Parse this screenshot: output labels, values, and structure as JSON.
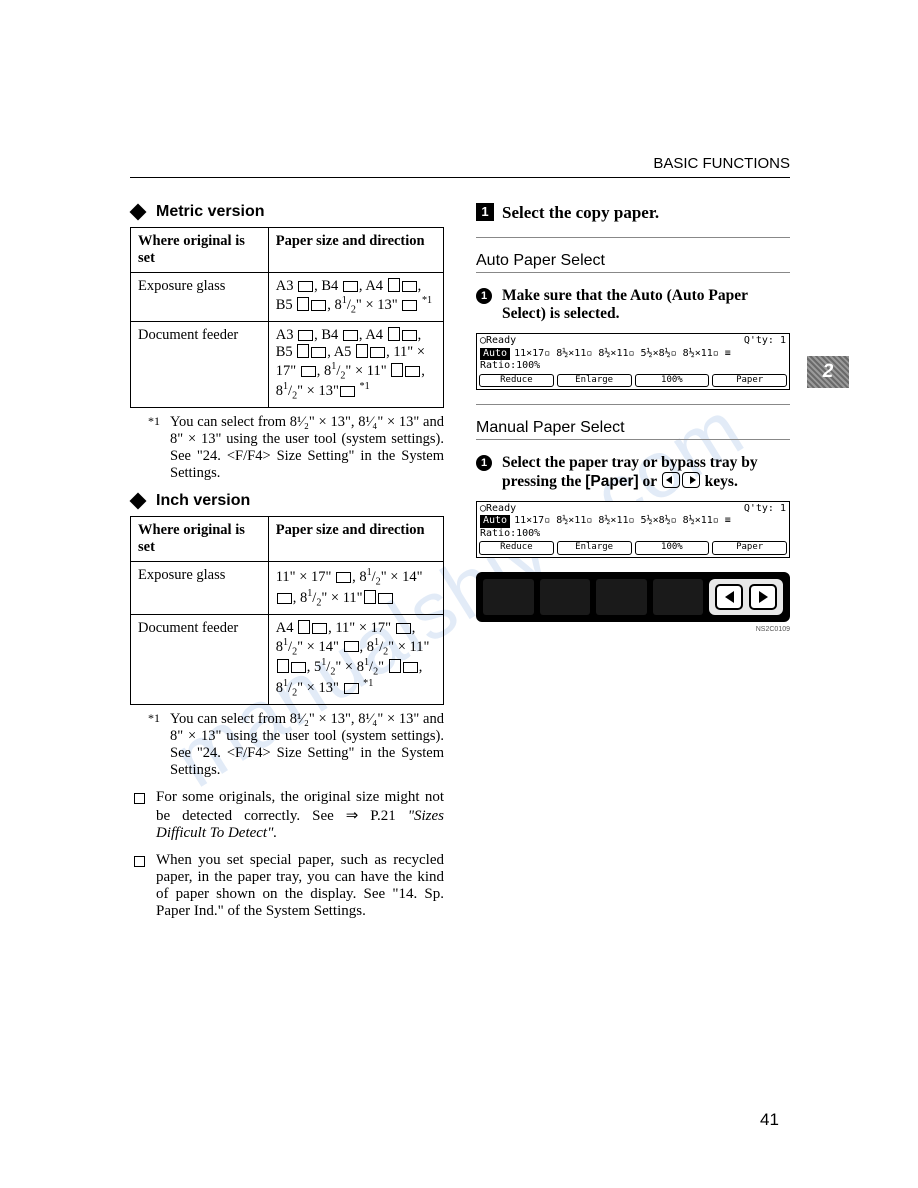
{
  "header": "BASIC FUNCTIONS",
  "tab": "2",
  "pagenum": "41",
  "watermark": "manualshive.com",
  "left": {
    "metric": {
      "title": "Metric version",
      "th1": "Where original is set",
      "th2": "Paper size and direction",
      "r1c1": "Exposure glass",
      "r1c2": "A3 ⬚, B4 ⬚, A4 ⬚⬚, B5 ⬚⬚, 8¹⁄₂\" × 13\" ⬚ *¹",
      "r2c1": "Document feeder",
      "r2c2": "A3 ⬚, B4 ⬚, A4 ⬚⬚, B5 ⬚⬚, A5 ⬚⬚, 11\" × 17\" ⬚, 8¹⁄₂\" × 11\" ⬚⬚, 8¹⁄₂\" × 13\"⬚ *¹"
    },
    "footnote1": "You can select from 8¹⁄₂\" × 13\", 8¹⁄₄\" × 13\" and 8\" × 13\" using the user tool (system settings). See \"24. <F/F4> Size Setting\" in the System Settings.",
    "inch": {
      "title": "Inch version",
      "th1": "Where original is set",
      "th2": "Paper size and direction",
      "r1c1": "Exposure glass",
      "r1c2": "11\" × 17\" ⬚, 8¹⁄₂\" × 14\" ⬚, 8¹⁄₂\" × 11\"⬚⬚",
      "r2c1": "Document feeder",
      "r2c2": "A4 ⬚⬚, 11\" × 17\" ⬚, 8¹⁄₂\" × 14\" ⬚, 8¹⁄₂\" × 11\" ⬚⬚, 5¹⁄₂\" × 8¹⁄₂\" ⬚⬚, 8¹⁄₂\" × 13\" ⬚ *¹"
    },
    "footnote2": "You can select from 8¹⁄₂\" × 13\", 8¹⁄₄\" × 13\" and 8\" × 13\" using the user tool (system settings). See \"24. <F/F4> Size Setting\" in the System Settings.",
    "bullet1a": "For some originals, the original size might not be detected correctly. See ⇒ P.21 ",
    "bullet1b": "\"Sizes Difficult To Detect\".",
    "bullet2": "When you set special paper, such as recycled paper, in the paper tray, you can have the kind of paper shown on the display. See \"14. Sp. Paper Ind.\" of the System Settings."
  },
  "right": {
    "step": "1",
    "stepTitle": "Select the copy paper.",
    "auto": {
      "label": "Auto Paper Select",
      "instr": "Make sure that the Auto (Auto Paper Select) is selected."
    },
    "manual": {
      "label": "Manual Paper Select",
      "instr_a": "Select the paper tray or bypass tray by pressing the ",
      "instr_b": "[Paper]",
      "instr_c": " or ",
      "instr_d": "keys."
    },
    "lcd": {
      "ready": "◯Ready",
      "qty": "Q'ty:   1",
      "auto": "Auto",
      "sizes": "11×17▫ 8½×11▫ 8½×11▫ 5½×8½▫ 8½×11▫ ≡",
      "ratio": "Ratio:100%",
      "b1": "Reduce",
      "b2": "Enlarge",
      "b3": "100%",
      "b4": "Paper"
    },
    "figid": "NS2C0109"
  }
}
